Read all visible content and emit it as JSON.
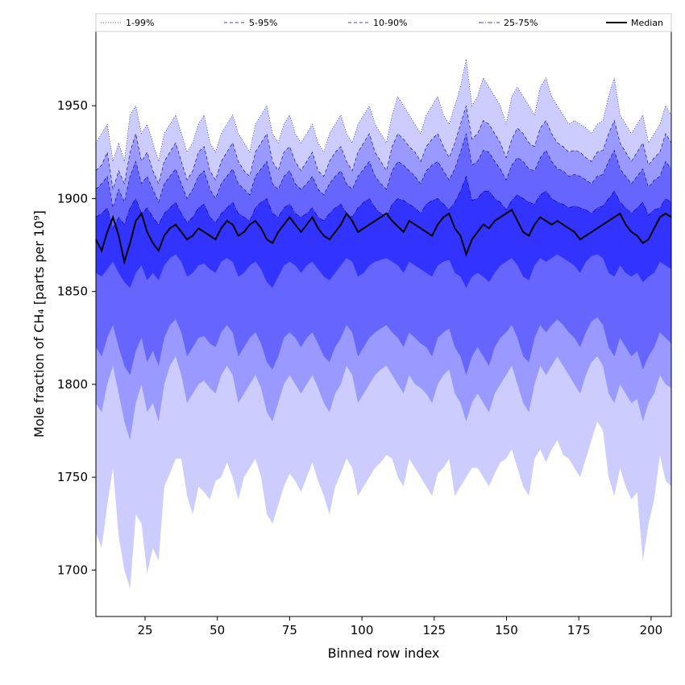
{
  "chart_data": {
    "type": "area",
    "title": "",
    "xlabel": "Binned row index",
    "ylabel": "Mole fraction of CH₄ [parts per 10⁹]",
    "xlim": [
      8,
      207
    ],
    "ylim": [
      1675,
      1990
    ],
    "xticks": [
      25,
      50,
      75,
      100,
      125,
      150,
      175,
      200
    ],
    "yticks": [
      1700,
      1750,
      1800,
      1850,
      1900,
      1950
    ],
    "grid": false,
    "legend_position": "top",
    "x_start": 8,
    "x_end": 207,
    "bands": [
      {
        "name": "1-99%",
        "fill": "#ccccff",
        "line_style": "dotted",
        "low": [
          1720,
          1712,
          1735,
          1755,
          1718,
          1700,
          1690,
          1730,
          1725,
          1698,
          1712,
          1705,
          1745,
          1752,
          1760,
          1760,
          1740,
          1730,
          1745,
          1742,
          1738,
          1748,
          1750,
          1758,
          1750,
          1738,
          1750,
          1755,
          1760,
          1750,
          1730,
          1725,
          1735,
          1745,
          1752,
          1748,
          1742,
          1750,
          1758,
          1748,
          1740,
          1730,
          1745,
          1752,
          1760,
          1755,
          1740,
          1745,
          1750,
          1755,
          1758,
          1762,
          1760,
          1750,
          1745,
          1760,
          1755,
          1750,
          1745,
          1740,
          1752,
          1755,
          1760,
          1740,
          1745,
          1750,
          1755,
          1755,
          1750,
          1745,
          1752,
          1758,
          1760,
          1765,
          1755,
          1745,
          1740,
          1760,
          1765,
          1758,
          1765,
          1770,
          1762,
          1760,
          1755,
          1750,
          1760,
          1770,
          1780,
          1775,
          1750,
          1740,
          1755,
          1745,
          1738,
          1742,
          1705,
          1725,
          1738,
          1762,
          1748,
          1745
        ],
        "high": [
          1930,
          1935,
          1940,
          1920,
          1930,
          1920,
          1945,
          1950,
          1935,
          1940,
          1930,
          1920,
          1935,
          1940,
          1945,
          1935,
          1925,
          1930,
          1940,
          1945,
          1930,
          1925,
          1935,
          1940,
          1945,
          1935,
          1930,
          1925,
          1940,
          1945,
          1950,
          1935,
          1930,
          1940,
          1945,
          1935,
          1930,
          1935,
          1940,
          1930,
          1925,
          1935,
          1940,
          1945,
          1935,
          1930,
          1940,
          1945,
          1950,
          1940,
          1935,
          1930,
          1945,
          1955,
          1950,
          1945,
          1940,
          1935,
          1945,
          1950,
          1955,
          1945,
          1940,
          1950,
          1960,
          1975,
          1950,
          1955,
          1965,
          1960,
          1955,
          1950,
          1940,
          1955,
          1960,
          1955,
          1950,
          1945,
          1960,
          1965,
          1955,
          1950,
          1945,
          1940,
          1942,
          1940,
          1938,
          1935,
          1940,
          1942,
          1955,
          1965,
          1945,
          1940,
          1935,
          1940,
          1945,
          1930,
          1935,
          1940,
          1950,
          1945
        ]
      },
      {
        "name": "5-95%",
        "fill": "#9999ff",
        "line_style": "dashed",
        "low": [
          1790,
          1785,
          1800,
          1810,
          1795,
          1780,
          1770,
          1790,
          1800,
          1785,
          1790,
          1780,
          1800,
          1810,
          1815,
          1805,
          1790,
          1795,
          1800,
          1802,
          1798,
          1795,
          1805,
          1810,
          1805,
          1790,
          1795,
          1800,
          1805,
          1798,
          1785,
          1780,
          1790,
          1800,
          1805,
          1800,
          1795,
          1800,
          1805,
          1798,
          1790,
          1785,
          1795,
          1800,
          1810,
          1805,
          1790,
          1795,
          1800,
          1805,
          1808,
          1810,
          1805,
          1800,
          1795,
          1805,
          1800,
          1798,
          1795,
          1790,
          1800,
          1805,
          1808,
          1795,
          1790,
          1780,
          1790,
          1795,
          1790,
          1785,
          1795,
          1800,
          1805,
          1810,
          1800,
          1790,
          1785,
          1800,
          1810,
          1805,
          1810,
          1815,
          1810,
          1805,
          1800,
          1795,
          1805,
          1812,
          1815,
          1810,
          1795,
          1790,
          1800,
          1795,
          1790,
          1792,
          1780,
          1790,
          1795,
          1805,
          1800,
          1798
        ],
        "high": [
          1915,
          1918,
          1925,
          1905,
          1915,
          1908,
          1925,
          1935,
          1920,
          1925,
          1915,
          1908,
          1920,
          1925,
          1930,
          1920,
          1910,
          1915,
          1925,
          1928,
          1915,
          1910,
          1920,
          1925,
          1930,
          1920,
          1915,
          1912,
          1925,
          1930,
          1935,
          1920,
          1915,
          1925,
          1928,
          1920,
          1915,
          1920,
          1925,
          1915,
          1912,
          1920,
          1925,
          1928,
          1920,
          1915,
          1925,
          1930,
          1935,
          1925,
          1920,
          1915,
          1928,
          1935,
          1932,
          1928,
          1925,
          1920,
          1928,
          1932,
          1935,
          1928,
          1922,
          1930,
          1940,
          1950,
          1932,
          1935,
          1942,
          1940,
          1935,
          1930,
          1922,
          1932,
          1938,
          1935,
          1930,
          1928,
          1938,
          1942,
          1935,
          1930,
          1928,
          1925,
          1926,
          1925,
          1922,
          1920,
          1925,
          1926,
          1935,
          1942,
          1930,
          1925,
          1920,
          1925,
          1930,
          1918,
          1922,
          1925,
          1935,
          1930
        ]
      },
      {
        "name": "10-90%",
        "fill": "#6666ff",
        "line_style": "dashed",
        "low": [
          1820,
          1815,
          1825,
          1832,
          1820,
          1810,
          1805,
          1818,
          1825,
          1812,
          1818,
          1810,
          1825,
          1832,
          1835,
          1828,
          1815,
          1820,
          1825,
          1826,
          1822,
          1820,
          1828,
          1832,
          1828,
          1815,
          1820,
          1825,
          1828,
          1822,
          1812,
          1808,
          1815,
          1825,
          1828,
          1825,
          1820,
          1825,
          1828,
          1822,
          1815,
          1812,
          1820,
          1825,
          1832,
          1828,
          1815,
          1820,
          1825,
          1828,
          1830,
          1832,
          1828,
          1825,
          1820,
          1828,
          1825,
          1822,
          1820,
          1815,
          1825,
          1828,
          1830,
          1820,
          1815,
          1805,
          1815,
          1820,
          1815,
          1810,
          1820,
          1825,
          1828,
          1832,
          1825,
          1815,
          1812,
          1825,
          1832,
          1828,
          1832,
          1835,
          1832,
          1828,
          1825,
          1820,
          1828,
          1834,
          1836,
          1832,
          1820,
          1815,
          1825,
          1820,
          1815,
          1818,
          1808,
          1815,
          1820,
          1828,
          1825,
          1822
        ],
        "high": [
          1905,
          1908,
          1912,
          1895,
          1905,
          1898,
          1912,
          1920,
          1908,
          1912,
          1905,
          1898,
          1908,
          1912,
          1916,
          1908,
          1900,
          1905,
          1912,
          1915,
          1905,
          1900,
          1908,
          1912,
          1916,
          1908,
          1905,
          1902,
          1912,
          1916,
          1920,
          1908,
          1905,
          1912,
          1915,
          1908,
          1905,
          1908,
          1912,
          1905,
          1902,
          1908,
          1912,
          1915,
          1908,
          1905,
          1912,
          1916,
          1920,
          1912,
          1908,
          1905,
          1915,
          1920,
          1918,
          1915,
          1912,
          1908,
          1915,
          1918,
          1920,
          1915,
          1910,
          1916,
          1925,
          1935,
          1918,
          1920,
          1926,
          1925,
          1920,
          1916,
          1910,
          1918,
          1922,
          1920,
          1916,
          1915,
          1922,
          1926,
          1920,
          1916,
          1915,
          1912,
          1913,
          1912,
          1910,
          1908,
          1912,
          1913,
          1920,
          1926,
          1916,
          1912,
          1908,
          1912,
          1916,
          1906,
          1910,
          1912,
          1920,
          1916
        ]
      },
      {
        "name": "25-75%",
        "fill": "#3333ff",
        "line_style": "dashdot",
        "low": [
          1860,
          1858,
          1862,
          1866,
          1860,
          1855,
          1852,
          1860,
          1864,
          1856,
          1860,
          1856,
          1864,
          1868,
          1870,
          1866,
          1858,
          1860,
          1864,
          1865,
          1862,
          1860,
          1866,
          1868,
          1866,
          1858,
          1860,
          1864,
          1866,
          1862,
          1855,
          1852,
          1858,
          1864,
          1866,
          1864,
          1860,
          1864,
          1866,
          1862,
          1858,
          1856,
          1860,
          1864,
          1868,
          1866,
          1858,
          1860,
          1864,
          1866,
          1867,
          1868,
          1866,
          1864,
          1860,
          1866,
          1864,
          1862,
          1860,
          1858,
          1864,
          1866,
          1867,
          1860,
          1858,
          1852,
          1858,
          1860,
          1858,
          1855,
          1860,
          1864,
          1866,
          1868,
          1864,
          1858,
          1856,
          1864,
          1868,
          1866,
          1868,
          1870,
          1868,
          1866,
          1864,
          1860,
          1866,
          1869,
          1870,
          1868,
          1860,
          1858,
          1864,
          1860,
          1858,
          1860,
          1855,
          1858,
          1860,
          1866,
          1864,
          1862
        ],
        "high": [
          1890,
          1892,
          1895,
          1884,
          1890,
          1886,
          1895,
          1900,
          1892,
          1895,
          1890,
          1886,
          1892,
          1895,
          1898,
          1892,
          1887,
          1890,
          1895,
          1897,
          1890,
          1887,
          1892,
          1895,
          1898,
          1892,
          1890,
          1888,
          1895,
          1898,
          1900,
          1892,
          1890,
          1895,
          1897,
          1892,
          1890,
          1892,
          1895,
          1890,
          1888,
          1892,
          1895,
          1897,
          1892,
          1890,
          1895,
          1898,
          1900,
          1895,
          1892,
          1890,
          1897,
          1900,
          1899,
          1897,
          1895,
          1892,
          1897,
          1899,
          1900,
          1897,
          1894,
          1898,
          1904,
          1912,
          1899,
          1900,
          1904,
          1904,
          1900,
          1898,
          1894,
          1899,
          1902,
          1900,
          1898,
          1897,
          1902,
          1904,
          1900,
          1898,
          1897,
          1895,
          1896,
          1895,
          1894,
          1892,
          1895,
          1896,
          1900,
          1904,
          1898,
          1895,
          1892,
          1895,
          1898,
          1891,
          1894,
          1895,
          1900,
          1898
        ]
      }
    ],
    "median": {
      "name": "Median",
      "color": "#000000",
      "values": [
        1878,
        1872,
        1882,
        1890,
        1880,
        1866,
        1876,
        1888,
        1892,
        1882,
        1876,
        1872,
        1880,
        1884,
        1886,
        1882,
        1878,
        1880,
        1884,
        1882,
        1880,
        1878,
        1884,
        1888,
        1886,
        1880,
        1882,
        1886,
        1888,
        1884,
        1878,
        1876,
        1882,
        1886,
        1890,
        1886,
        1882,
        1886,
        1890,
        1884,
        1880,
        1878,
        1882,
        1886,
        1892,
        1888,
        1882,
        1884,
        1886,
        1888,
        1890,
        1892,
        1888,
        1885,
        1882,
        1888,
        1886,
        1884,
        1882,
        1880,
        1886,
        1890,
        1892,
        1884,
        1880,
        1870,
        1878,
        1882,
        1886,
        1884,
        1888,
        1890,
        1892,
        1894,
        1888,
        1882,
        1880,
        1886,
        1890,
        1888,
        1886,
        1888,
        1886,
        1884,
        1882,
        1878,
        1880,
        1882,
        1884,
        1886,
        1888,
        1890,
        1892,
        1886,
        1882,
        1880,
        1876,
        1878,
        1884,
        1890,
        1892,
        1890
      ]
    }
  }
}
